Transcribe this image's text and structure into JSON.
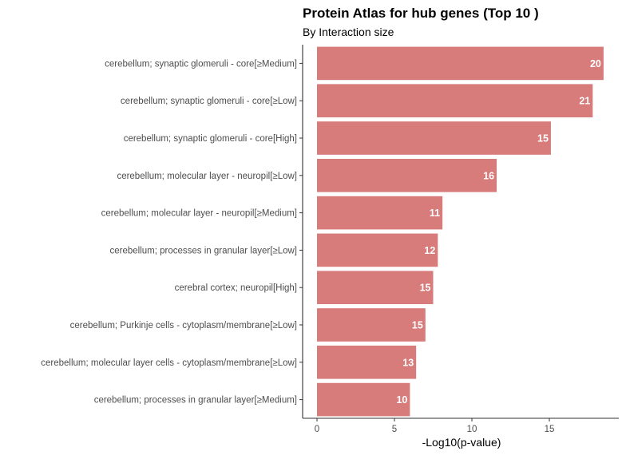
{
  "chart_data": {
    "type": "bar",
    "orientation": "horizontal",
    "title": "Protein Atlas for hub genes (Top 10 )",
    "subtitle": "By Interaction size",
    "xlabel": "-Log10(p-value)",
    "ylabel": "",
    "xlim": [
      0,
      19
    ],
    "xticks": [
      0,
      5,
      10,
      15
    ],
    "categories": [
      "cerebellum; synaptic glomeruli - core[≥Medium]",
      "cerebellum; synaptic glomeruli - core[≥Low]",
      "cerebellum; synaptic glomeruli - core[High]",
      "cerebellum; molecular layer - neuropil[≥Low]",
      "cerebellum; molecular layer - neuropil[≥Medium]",
      "cerebellum; processes in granular layer[≥Low]",
      "cerebral cortex; neuropil[High]",
      "cerebellum; Purkinje cells - cytoplasm/membrane[≥Low]",
      "cerebellum; molecular layer cells - cytoplasm/membrane[≥Low]",
      "cerebellum; processes in granular layer[≥Medium]"
    ],
    "values": [
      18.5,
      17.8,
      15.1,
      11.6,
      8.1,
      7.8,
      7.5,
      7.0,
      6.4,
      6.0
    ],
    "labels": [
      "20",
      "21",
      "15",
      "16",
      "11",
      "12",
      "15",
      "15",
      "13",
      "10"
    ],
    "bar_color": "#d77b7b",
    "grid": false,
    "legend": "none"
  }
}
